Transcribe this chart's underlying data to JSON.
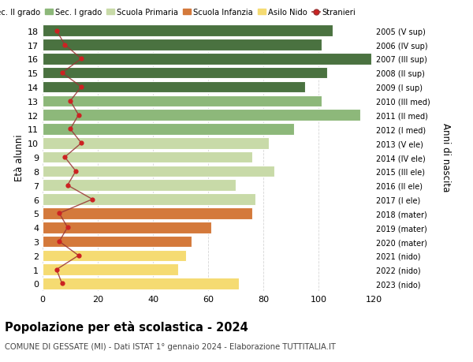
{
  "ages": [
    0,
    1,
    2,
    3,
    4,
    5,
    6,
    7,
    8,
    9,
    10,
    11,
    12,
    13,
    14,
    15,
    16,
    17,
    18
  ],
  "bar_values": [
    71,
    49,
    52,
    54,
    61,
    76,
    77,
    70,
    84,
    76,
    82,
    91,
    115,
    101,
    95,
    103,
    119,
    101,
    105
  ],
  "stranieri_values": [
    7,
    5,
    13,
    6,
    9,
    6,
    18,
    9,
    12,
    8,
    14,
    10,
    13,
    10,
    14,
    7,
    14,
    8,
    5
  ],
  "right_labels": [
    "2023 (nido)",
    "2022 (nido)",
    "2021 (nido)",
    "2020 (mater)",
    "2019 (mater)",
    "2018 (mater)",
    "2017 (I ele)",
    "2016 (II ele)",
    "2015 (III ele)",
    "2014 (IV ele)",
    "2013 (V ele)",
    "2012 (I med)",
    "2011 (II med)",
    "2010 (III med)",
    "2009 (I sup)",
    "2008 (II sup)",
    "2007 (III sup)",
    "2006 (IV sup)",
    "2005 (V sup)"
  ],
  "bar_colors": [
    "#f5db72",
    "#f5db72",
    "#f5db72",
    "#d4793b",
    "#d4793b",
    "#d4793b",
    "#c8daa8",
    "#c8daa8",
    "#c8daa8",
    "#c8daa8",
    "#c8daa8",
    "#8db87a",
    "#8db87a",
    "#8db87a",
    "#4a7240",
    "#4a7240",
    "#4a7240",
    "#4a7240",
    "#4a7240"
  ],
  "legend_labels": [
    "Sec. II grado",
    "Sec. I grado",
    "Scuola Primaria",
    "Scuola Infanzia",
    "Asilo Nido",
    "Stranieri"
  ],
  "legend_colors": [
    "#4a7240",
    "#8db87a",
    "#c8daa8",
    "#d4793b",
    "#f5db72",
    "#cc2222"
  ],
  "stranieri_line_color": "#993333",
  "stranieri_dot_color": "#cc2222",
  "title": "Popolazione per età scolastica - 2024",
  "subtitle": "COMUNE DI GESSATE (MI) - Dati ISTAT 1° gennaio 2024 - Elaborazione TUTTITALIA.IT",
  "ylabel": "Età alunni",
  "right_ylabel": "Anni di nascita",
  "xlim": [
    0,
    128
  ],
  "xticks": [
    0,
    20,
    40,
    60,
    80,
    100,
    120
  ],
  "bg_color": "#ffffff",
  "grid_color": "#cccccc"
}
